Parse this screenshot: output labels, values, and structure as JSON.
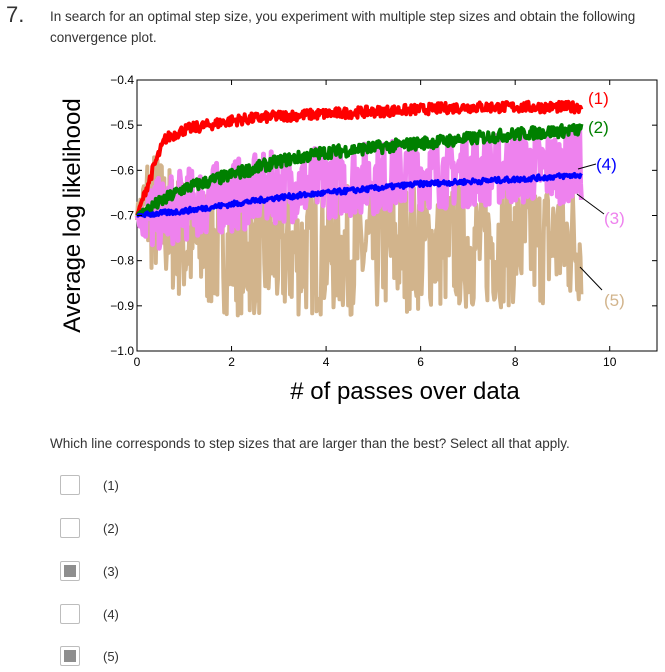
{
  "question": {
    "number": "7.",
    "text": "In search for an optimal step size, you experiment with multiple step sizes and obtain the following convergence plot.",
    "prompt": "Which line corresponds to step sizes that are larger than the best? Select all that apply."
  },
  "options": [
    {
      "label": "(1)",
      "checked": false
    },
    {
      "label": "(2)",
      "checked": false
    },
    {
      "label": "(3)",
      "checked": true
    },
    {
      "label": "(4)",
      "checked": false
    },
    {
      "label": "(5)",
      "checked": true
    }
  ],
  "chart_data": {
    "type": "line",
    "xlabel": "# of passes over data",
    "ylabel": "Average log likelihood",
    "xlim": [
      0,
      11
    ],
    "ylim": [
      -1.0,
      -0.4
    ],
    "xticks": [
      "0",
      "2",
      "4",
      "6",
      "8",
      "10"
    ],
    "yticks": [
      "−0.4",
      "−0.5",
      "−0.6",
      "−0.7",
      "−0.8",
      "−0.9",
      "−1.0"
    ],
    "grid": false,
    "series": [
      {
        "name": "(1)",
        "color": "#ff0000",
        "x": [
          0,
          0.2,
          0.4,
          0.6,
          1,
          2,
          3,
          4,
          5,
          6,
          7,
          8,
          9.4
        ],
        "values": [
          -0.7,
          -0.64,
          -0.58,
          -0.53,
          -0.51,
          -0.49,
          -0.48,
          -0.475,
          -0.47,
          -0.465,
          -0.46,
          -0.46,
          -0.46
        ]
      },
      {
        "name": "(2)",
        "color": "#008000",
        "x": [
          0,
          1,
          2,
          3,
          4,
          5,
          6,
          7,
          8,
          9.4
        ],
        "values": [
          -0.7,
          -0.64,
          -0.61,
          -0.58,
          -0.56,
          -0.55,
          -0.54,
          -0.53,
          -0.52,
          -0.51
        ]
      },
      {
        "name": "(3)",
        "color": "#ee82ee",
        "x": [
          0,
          1,
          2,
          3,
          4,
          5,
          6,
          7,
          8,
          9.4
        ],
        "values": [
          -0.7,
          -0.66,
          -0.64,
          -0.62,
          -0.61,
          -0.6,
          -0.59,
          -0.585,
          -0.58,
          -0.575
        ]
      },
      {
        "name": "(4)",
        "color": "#0000ff",
        "x": [
          0,
          1,
          2,
          3,
          4,
          5,
          6,
          7,
          8,
          9.4
        ],
        "values": [
          -0.7,
          -0.69,
          -0.675,
          -0.66,
          -0.65,
          -0.64,
          -0.63,
          -0.625,
          -0.62,
          -0.61
        ]
      },
      {
        "name": "(5)",
        "color": "#d2b48c",
        "x": [
          0,
          1,
          2,
          3,
          4,
          5,
          6,
          7,
          8,
          9.4
        ],
        "values": [
          -0.7,
          -0.8,
          -0.82,
          -0.83,
          -0.82,
          -0.82,
          -0.81,
          -0.81,
          -0.8,
          -0.8
        ]
      }
    ],
    "annotations": [
      "(1)",
      "(2)",
      "(4)",
      "(3)",
      "(5)"
    ]
  }
}
